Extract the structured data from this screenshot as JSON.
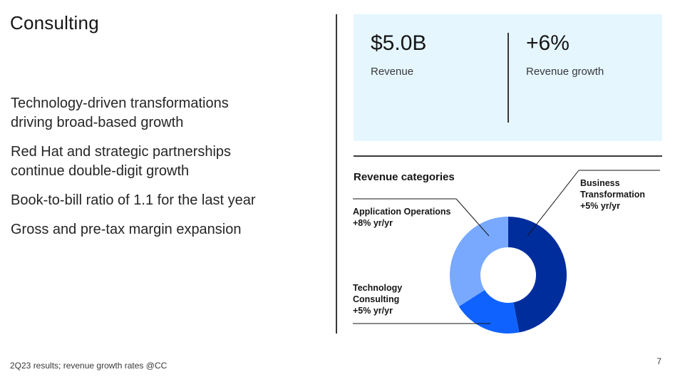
{
  "slide": {
    "title": "Consulting",
    "bullets": [
      "Technology-driven transformations driving broad-based growth",
      "Red Hat and strategic partnerships continue double-digit growth",
      "Book-to-bill ratio of 1.1 for the last year",
      "Gross and pre-tax margin expansion"
    ],
    "footer": "2Q23 results; revenue growth rates @CC",
    "page_number": "7"
  },
  "kpis": [
    {
      "value": "$5.0B",
      "label": "Revenue"
    },
    {
      "value": "+6%",
      "label": "Revenue growth"
    }
  ],
  "colors": {
    "kpi_background": "#e5f6ff",
    "business_transformation": "#002d9c",
    "technology_consulting": "#0f62fe",
    "application_operations": "#78a9ff"
  },
  "chart_data": {
    "type": "pie",
    "title": "Revenue categories",
    "donut": true,
    "series": [
      {
        "name": "Business Transformation",
        "growth": "+5% yr/yr",
        "share": 0.47
      },
      {
        "name": "Technology Consulting",
        "growth": "+5% yr/yr",
        "share": 0.19
      },
      {
        "name": "Application Operations",
        "growth": "+8% yr/yr",
        "share": 0.34
      }
    ],
    "labels": [
      {
        "lines": [
          "Business",
          "Transformation",
          "+5% yr/yr"
        ]
      },
      {
        "lines": [
          "Application Operations",
          "+8% yr/yr"
        ]
      },
      {
        "lines": [
          "Technology",
          "Consulting",
          "+5% yr/yr"
        ]
      }
    ]
  }
}
